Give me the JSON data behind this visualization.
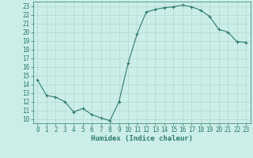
{
  "x": [
    0,
    1,
    2,
    3,
    4,
    5,
    6,
    7,
    8,
    9,
    10,
    11,
    12,
    13,
    14,
    15,
    16,
    17,
    18,
    19,
    20,
    21,
    22,
    23
  ],
  "y": [
    14.5,
    12.7,
    12.5,
    12.0,
    10.8,
    11.2,
    10.5,
    10.1,
    9.8,
    12.0,
    16.4,
    19.8,
    22.3,
    22.6,
    22.8,
    22.9,
    23.1,
    22.9,
    22.5,
    21.8,
    20.3,
    20.0,
    18.9,
    18.8
  ],
  "line_color": "#2d7a6e",
  "marker": "+",
  "marker_size": 3,
  "marker_lw": 0.8,
  "line_width": 0.8,
  "bg_color": "#cceee8",
  "grid_color": "#b0d8d0",
  "xlabel": "Humidex (Indice chaleur)",
  "ylim": [
    9.5,
    23.5
  ],
  "xlim": [
    -0.5,
    23.5
  ],
  "yticks": [
    10,
    11,
    12,
    13,
    14,
    15,
    16,
    17,
    18,
    19,
    20,
    21,
    22,
    23
  ],
  "xticks": [
    0,
    1,
    2,
    3,
    4,
    5,
    6,
    7,
    8,
    9,
    10,
    11,
    12,
    13,
    14,
    15,
    16,
    17,
    18,
    19,
    20,
    21,
    22,
    23
  ],
  "tick_fontsize": 5.5,
  "label_fontsize": 6.5,
  "tick_color": "#2d7a6e",
  "spine_color": "#2d7a6e"
}
